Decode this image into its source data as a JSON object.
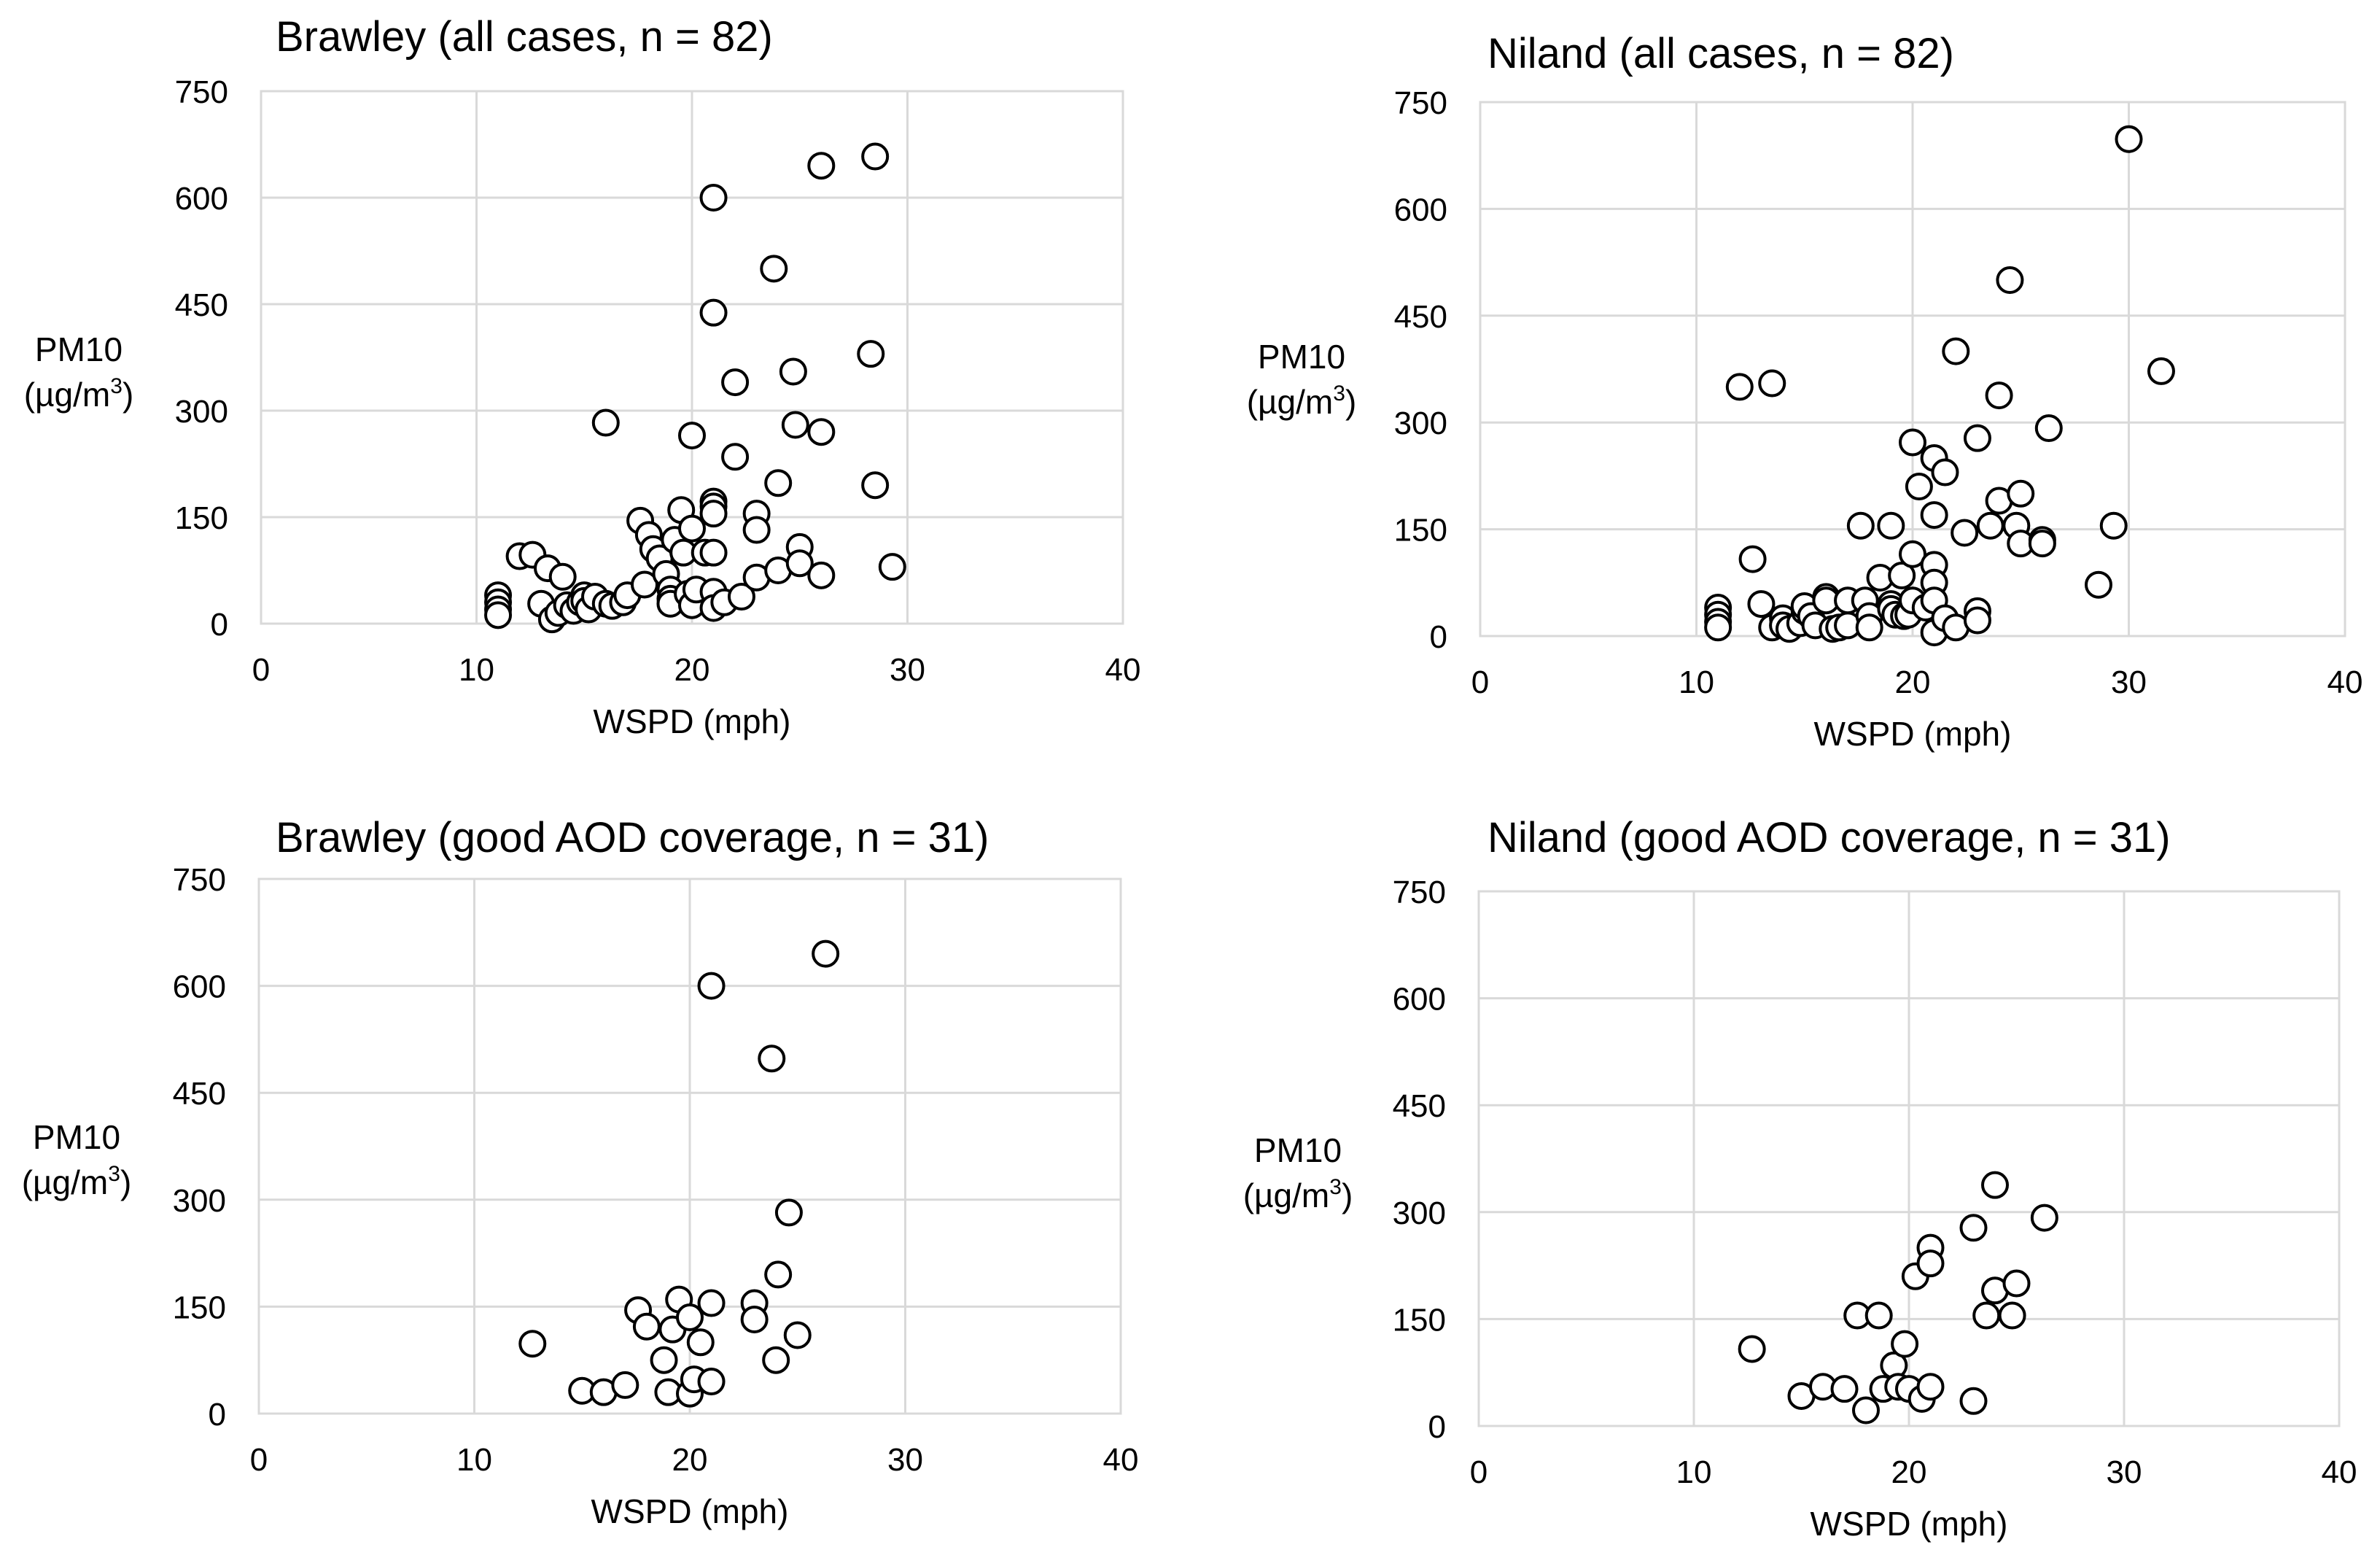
{
  "chart_data": [
    {
      "type": "scatter",
      "title": "Brawley (all cases, n = 82)",
      "xlabel": "WSPD (mph)",
      "ylabel_main": "PM10",
      "ylabel_unit": "(µg/m",
      "ylabel_sup": "3",
      "ylabel_close": ")",
      "xlim": [
        0,
        40
      ],
      "ylim": [
        0,
        750
      ],
      "xticks": [
        0,
        10,
        20,
        30,
        40
      ],
      "yticks": [
        0,
        150,
        300,
        450,
        600,
        750
      ],
      "grid": true,
      "points": [
        [
          11,
          40
        ],
        [
          11,
          30
        ],
        [
          11,
          20
        ],
        [
          11,
          12
        ],
        [
          12,
          95
        ],
        [
          12.6,
          97
        ],
        [
          13,
          28
        ],
        [
          13.3,
          78
        ],
        [
          13.5,
          6
        ],
        [
          13.8,
          15
        ],
        [
          14,
          66
        ],
        [
          14.2,
          26
        ],
        [
          14.5,
          18
        ],
        [
          14.8,
          30
        ],
        [
          15,
          40
        ],
        [
          15,
          32
        ],
        [
          15.2,
          20
        ],
        [
          15.5,
          38
        ],
        [
          16,
          283
        ],
        [
          16,
          28
        ],
        [
          16.3,
          25
        ],
        [
          16.8,
          30
        ],
        [
          17,
          40
        ],
        [
          17.6,
          145
        ],
        [
          17.8,
          55
        ],
        [
          18,
          125
        ],
        [
          18.2,
          105
        ],
        [
          18.5,
          92
        ],
        [
          18.8,
          70
        ],
        [
          19,
          48
        ],
        [
          19,
          35
        ],
        [
          19,
          28
        ],
        [
          19.2,
          118
        ],
        [
          19.5,
          160
        ],
        [
          19.6,
          100
        ],
        [
          19.8,
          42
        ],
        [
          20,
          265
        ],
        [
          20,
          134
        ],
        [
          20,
          26
        ],
        [
          20.2,
          48
        ],
        [
          20.6,
          100
        ],
        [
          21,
          600
        ],
        [
          21,
          438
        ],
        [
          21,
          172
        ],
        [
          21,
          165
        ],
        [
          21,
          155
        ],
        [
          21,
          100
        ],
        [
          21,
          45
        ],
        [
          21,
          22
        ],
        [
          21.5,
          30
        ],
        [
          22,
          340
        ],
        [
          22,
          235
        ],
        [
          22.3,
          38
        ],
        [
          23,
          155
        ],
        [
          23,
          132
        ],
        [
          23,
          65
        ],
        [
          23.8,
          500
        ],
        [
          24,
          75
        ],
        [
          24,
          198
        ],
        [
          24.7,
          355
        ],
        [
          24.8,
          280
        ],
        [
          25,
          108
        ],
        [
          25,
          85
        ],
        [
          26,
          645
        ],
        [
          26,
          270
        ],
        [
          26,
          68
        ],
        [
          28.3,
          380
        ],
        [
          28.5,
          658
        ],
        [
          28.5,
          195
        ],
        [
          29.3,
          80
        ]
      ]
    },
    {
      "type": "scatter",
      "title": "Niland (all cases, n = 82)",
      "xlabel": "WSPD (mph)",
      "ylabel_main": "PM10",
      "ylabel_unit": "(µg/m",
      "ylabel_sup": "3",
      "ylabel_close": ")",
      "xlim": [
        0,
        40
      ],
      "ylim": [
        0,
        750
      ],
      "xticks": [
        0,
        10,
        20,
        30,
        40
      ],
      "yticks": [
        0,
        150,
        300,
        450,
        600,
        750
      ],
      "grid": true,
      "points": [
        [
          11,
          40
        ],
        [
          11,
          30
        ],
        [
          11,
          20
        ],
        [
          11,
          12
        ],
        [
          12,
          350
        ],
        [
          12.6,
          108
        ],
        [
          13,
          45
        ],
        [
          13.5,
          355
        ],
        [
          13.5,
          12
        ],
        [
          14,
          25
        ],
        [
          14,
          15
        ],
        [
          14.3,
          10
        ],
        [
          14.8,
          18
        ],
        [
          15,
          35
        ],
        [
          15,
          42
        ],
        [
          15.3,
          28
        ],
        [
          15.5,
          15
        ],
        [
          16,
          55
        ],
        [
          16,
          50
        ],
        [
          16.3,
          10
        ],
        [
          16.6,
          12
        ],
        [
          17,
          50
        ],
        [
          17,
          15
        ],
        [
          17.6,
          155
        ],
        [
          17.8,
          50
        ],
        [
          18,
          28
        ],
        [
          18,
          12
        ],
        [
          18.5,
          82
        ],
        [
          19,
          155
        ],
        [
          19,
          45
        ],
        [
          19,
          38
        ],
        [
          19.2,
          30
        ],
        [
          19.5,
          85
        ],
        [
          19.6,
          28
        ],
        [
          19.8,
          30
        ],
        [
          20,
          272
        ],
        [
          20,
          115
        ],
        [
          20,
          50
        ],
        [
          20.3,
          210
        ],
        [
          20.6,
          40
        ],
        [
          21,
          250
        ],
        [
          21,
          170
        ],
        [
          21,
          100
        ],
        [
          21,
          75
        ],
        [
          21,
          50
        ],
        [
          21,
          5
        ],
        [
          21.5,
          25
        ],
        [
          21.5,
          230
        ],
        [
          22,
          400
        ],
        [
          22,
          12
        ],
        [
          22.4,
          145
        ],
        [
          23,
          278
        ],
        [
          23,
          35
        ],
        [
          23,
          22
        ],
        [
          23.6,
          155
        ],
        [
          24,
          338
        ],
        [
          24,
          190
        ],
        [
          24.5,
          500
        ],
        [
          24.8,
          155
        ],
        [
          25,
          130
        ],
        [
          25,
          200
        ],
        [
          26,
          135
        ],
        [
          26,
          130
        ],
        [
          26.3,
          292
        ],
        [
          28.6,
          72
        ],
        [
          29.3,
          155
        ],
        [
          30,
          698
        ],
        [
          31.5,
          372
        ]
      ]
    },
    {
      "type": "scatter",
      "title": "Brawley (good AOD coverage, n = 31)",
      "xlabel": "WSPD (mph)",
      "ylabel_main": "PM10",
      "ylabel_unit": "(µg/m",
      "ylabel_sup": "3",
      "ylabel_close": ")",
      "xlim": [
        0,
        40
      ],
      "ylim": [
        0,
        750
      ],
      "xticks": [
        0,
        10,
        20,
        30,
        40
      ],
      "yticks": [
        0,
        150,
        300,
        450,
        600,
        750
      ],
      "grid": true,
      "points": [
        [
          12.7,
          98
        ],
        [
          15,
          32
        ],
        [
          16,
          30
        ],
        [
          17,
          40
        ],
        [
          17.6,
          145
        ],
        [
          18,
          122
        ],
        [
          18.8,
          75
        ],
        [
          19,
          30
        ],
        [
          19.2,
          118
        ],
        [
          19.5,
          160
        ],
        [
          20,
          135
        ],
        [
          20,
          28
        ],
        [
          20.2,
          48
        ],
        [
          20.5,
          100
        ],
        [
          21,
          600
        ],
        [
          21,
          155
        ],
        [
          21,
          45
        ],
        [
          23,
          155
        ],
        [
          23,
          132
        ],
        [
          23.8,
          498
        ],
        [
          24,
          75
        ],
        [
          24.1,
          195
        ],
        [
          24.6,
          282
        ],
        [
          25,
          110
        ],
        [
          26.3,
          645
        ]
      ]
    },
    {
      "type": "scatter",
      "title": "Niland (good AOD coverage, n = 31)",
      "xlabel": "WSPD (mph)",
      "ylabel_main": "PM10",
      "ylabel_unit": "(µg/m",
      "ylabel_sup": "3",
      "ylabel_close": ")",
      "xlim": [
        0,
        40
      ],
      "ylim": [
        0,
        750
      ],
      "xticks": [
        0,
        10,
        20,
        30,
        40
      ],
      "yticks": [
        0,
        150,
        300,
        450,
        600,
        750
      ],
      "grid": true,
      "points": [
        [
          12.7,
          108
        ],
        [
          15,
          42
        ],
        [
          16,
          55
        ],
        [
          17,
          52
        ],
        [
          17.6,
          155
        ],
        [
          18,
          22
        ],
        [
          18.6,
          155
        ],
        [
          18.8,
          52
        ],
        [
          19.3,
          85
        ],
        [
          19.5,
          55
        ],
        [
          19.8,
          115
        ],
        [
          20,
          52
        ],
        [
          20.3,
          210
        ],
        [
          20.6,
          38
        ],
        [
          21,
          250
        ],
        [
          21,
          228
        ],
        [
          21,
          55
        ],
        [
          23,
          278
        ],
        [
          23,
          35
        ],
        [
          23.6,
          155
        ],
        [
          24,
          338
        ],
        [
          24,
          190
        ],
        [
          24.8,
          155
        ],
        [
          25,
          200
        ],
        [
          26.3,
          292
        ]
      ]
    }
  ]
}
